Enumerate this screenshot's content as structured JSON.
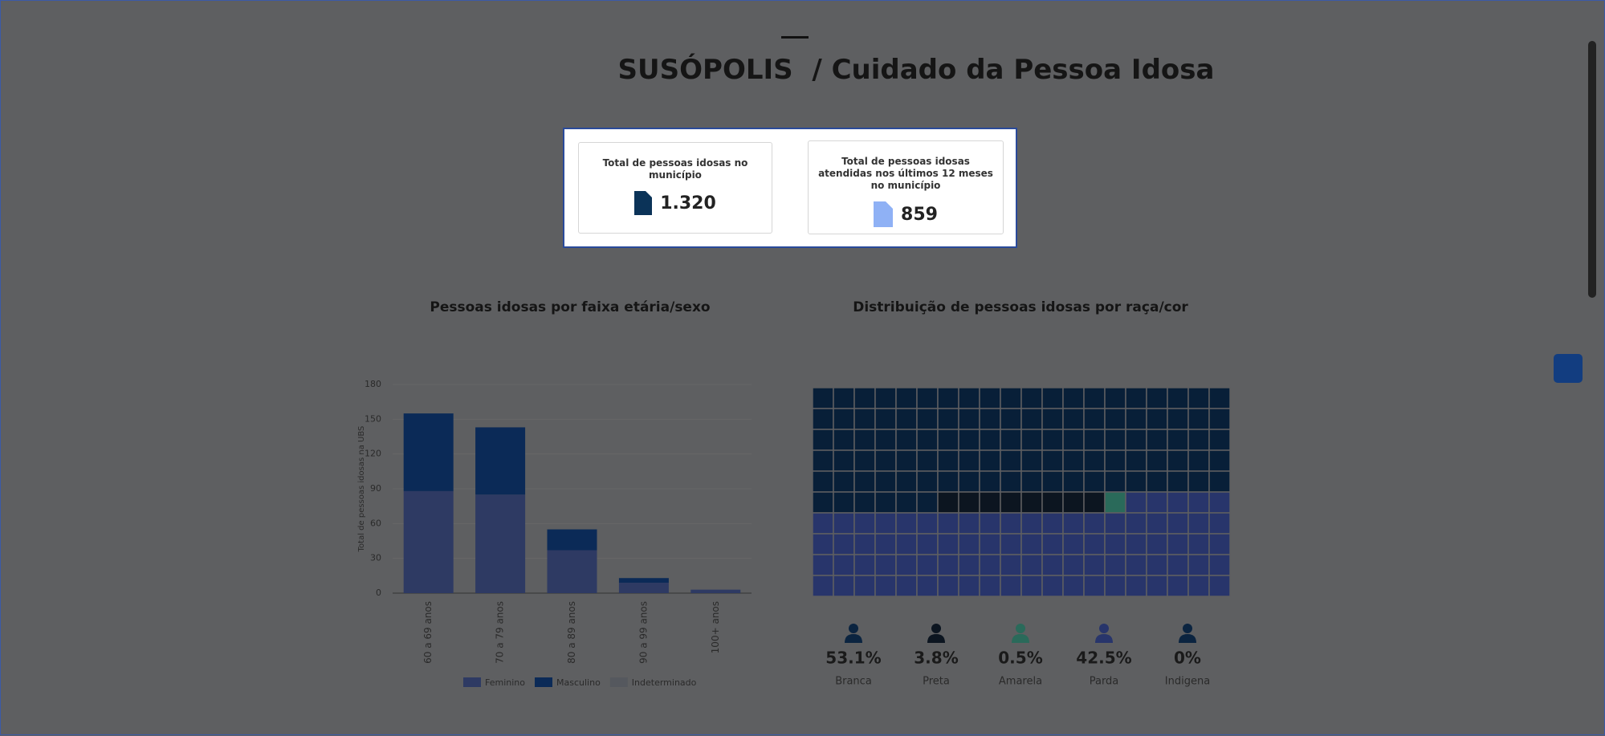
{
  "header": {
    "title": "SUSÓPOLIS  / Cuidado da Pessoa Idosa"
  },
  "cards": [
    {
      "title": "Total de pessoas idosas no município",
      "value": "1.320"
    },
    {
      "title": "Total de pessoas idosas atendidas nos últimos 12 meses no município",
      "value": "859"
    }
  ],
  "chart_data": [
    {
      "type": "bar",
      "stacked": true,
      "title": "Pessoas idosas por faixa etária/sexo",
      "y_label": "Total de pessoas idosas na UBS",
      "categories": [
        "60 a 69 anos",
        "70 a 79 anos",
        "80 a 89 anos",
        "90 a 99 anos",
        "100+ anos"
      ],
      "series": [
        {
          "name": "Feminino",
          "color": "#2e3a63",
          "values": [
            88,
            85,
            37,
            9,
            3
          ]
        },
        {
          "name": "Masculino",
          "color": "#0b2a57",
          "values": [
            67,
            58,
            18,
            4,
            0
          ]
        },
        {
          "name": "Indeterminado",
          "color": "#55585e",
          "values": [
            0,
            0,
            0,
            0,
            0
          ]
        }
      ],
      "ylim": [
        0,
        180
      ],
      "yticks": [
        0,
        30,
        60,
        90,
        120,
        150,
        180
      ],
      "grid": true,
      "legend": "bottom"
    },
    {
      "type": "waffle",
      "title": "Distribuição de pessoas idosas por raça/cor",
      "categories": [
        "Branca",
        "Preta",
        "Amarela",
        "Parda",
        "Indigena"
      ],
      "values": [
        53.1,
        3.8,
        0.5,
        42.5,
        0
      ],
      "value_labels": [
        "53.1%",
        "3.8%",
        "0.5%",
        "42.5%",
        "0%"
      ],
      "colors": [
        "#081f38",
        "#0c1520",
        "#2a6a5a",
        "#28356b",
        "#0b2440"
      ]
    }
  ]
}
